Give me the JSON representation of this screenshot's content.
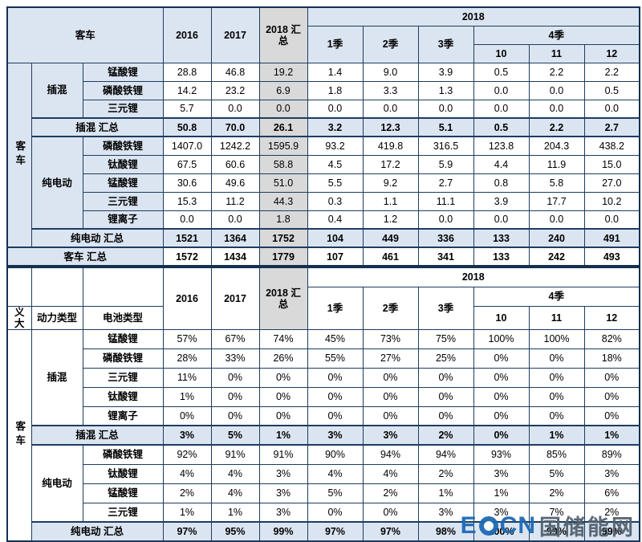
{
  "colors": {
    "header_blue": "#dbe5f1",
    "shade_gray": "#d9d9d9",
    "border": "#1d3c61",
    "watermark_blue": "#1e6ab4"
  },
  "watermark": {
    "left": "E",
    "right": "CN",
    "cn": "国储能网"
  },
  "chart_data": {
    "type": "table",
    "tables": [
      {
        "name": "bus-battery-volume-table",
        "side": "客车",
        "shade_col": 2,
        "header": {
          "corner": "客车",
          "years": [
            "2016",
            "2017"
          ],
          "total": "2018 汇总",
          "year_group": "2018",
          "quarters": [
            "1季",
            "2季",
            "3季"
          ],
          "q4": "4季",
          "months": [
            "10",
            "11",
            "12"
          ]
        },
        "groups": [
          {
            "name": "插混",
            "rows": [
              {
                "label": "锰酸锂",
                "values": [
                  "28.8",
                  "46.8",
                  "19.2",
                  "1.4",
                  "9.0",
                  "3.9",
                  "0.5",
                  "2.2",
                  "2.2"
                ]
              },
              {
                "label": "磷酸铁锂",
                "values": [
                  "14.2",
                  "23.2",
                  "6.9",
                  "1.8",
                  "3.3",
                  "1.3",
                  "0.0",
                  "0.0",
                  "0.5"
                ]
              },
              {
                "label": "三元锂",
                "values": [
                  "5.7",
                  "0.0",
                  "0.0",
                  "0.0",
                  "0.0",
                  "0.0",
                  "0.0",
                  "0.0",
                  "0.0"
                ]
              }
            ],
            "subtotal": {
              "label": "插混 汇总",
              "values": [
                "50.8",
                "70.0",
                "26.1",
                "3.2",
                "12.3",
                "5.1",
                "0.5",
                "2.2",
                "2.7"
              ]
            }
          },
          {
            "name": "纯电动",
            "rows": [
              {
                "label": "磷酸铁锂",
                "values": [
                  "1407.0",
                  "1242.2",
                  "1595.9",
                  "93.2",
                  "419.8",
                  "316.5",
                  "123.8",
                  "204.3",
                  "438.2"
                ]
              },
              {
                "label": "钛酸锂",
                "values": [
                  "67.5",
                  "60.6",
                  "58.8",
                  "4.5",
                  "17.2",
                  "5.9",
                  "4.4",
                  "11.9",
                  "15.0"
                ]
              },
              {
                "label": "锰酸锂",
                "values": [
                  "30.6",
                  "49.6",
                  "51.0",
                  "5.5",
                  "9.2",
                  "2.7",
                  "0.8",
                  "5.8",
                  "27.0"
                ]
              },
              {
                "label": "三元锂",
                "values": [
                  "15.3",
                  "11.2",
                  "44.3",
                  "0.3",
                  "1.1",
                  "11.1",
                  "3.9",
                  "17.7",
                  "10.2"
                ]
              },
              {
                "label": "锂离子",
                "values": [
                  "0.0",
                  "0.0",
                  "1.8",
                  "0.4",
                  "1.2",
                  "0.0",
                  "0.0",
                  "0.0",
                  "0.0"
                ]
              }
            ],
            "subtotal": {
              "label": "纯电动 汇总",
              "values": [
                "1521",
                "1364",
                "1752",
                "104",
                "449",
                "336",
                "133",
                "240",
                "491"
              ]
            }
          }
        ],
        "grand_total": {
          "label": "客车 汇总",
          "values": [
            "1572",
            "1434",
            "1779",
            "107",
            "461",
            "341",
            "133",
            "242",
            "493"
          ]
        }
      },
      {
        "name": "bus-battery-share-table",
        "side": "客车",
        "shade_col": -1,
        "header": {
          "corner_labels": [
            "义大",
            "动力类型",
            "电池类型"
          ],
          "years": [
            "2016",
            "2017"
          ],
          "total": "2018 汇总",
          "year_group": "2018",
          "quarters": [
            "1季",
            "2季",
            "3季"
          ],
          "q4": "4季",
          "months": [
            "10",
            "11",
            "12"
          ]
        },
        "groups": [
          {
            "name": "插混",
            "rows": [
              {
                "label": "锰酸锂",
                "values": [
                  "57%",
                  "67%",
                  "74%",
                  "45%",
                  "73%",
                  "75%",
                  "100%",
                  "100%",
                  "82%"
                ]
              },
              {
                "label": "磷酸铁锂",
                "values": [
                  "28%",
                  "33%",
                  "26%",
                  "55%",
                  "27%",
                  "25%",
                  "0%",
                  "0%",
                  "18%"
                ]
              },
              {
                "label": "三元锂",
                "values": [
                  "11%",
                  "0%",
                  "0%",
                  "0%",
                  "0%",
                  "0%",
                  "0%",
                  "0%",
                  "0%"
                ]
              },
              {
                "label": "钛酸锂",
                "values": [
                  "1%",
                  "0%",
                  "0%",
                  "0%",
                  "0%",
                  "0%",
                  "0%",
                  "0%",
                  "0%"
                ]
              },
              {
                "label": "锂离子",
                "values": [
                  "0%",
                  "0%",
                  "0%",
                  "0%",
                  "0%",
                  "0%",
                  "0%",
                  "0%",
                  "0%"
                ]
              }
            ],
            "subtotal": {
              "label": "插混 汇总",
              "values": [
                "3%",
                "5%",
                "1%",
                "3%",
                "3%",
                "2%",
                "0%",
                "1%",
                "1%"
              ]
            }
          },
          {
            "name": "纯电动",
            "rows": [
              {
                "label": "磷酸铁锂",
                "values": [
                  "92%",
                  "91%",
                  "91%",
                  "90%",
                  "94%",
                  "94%",
                  "93%",
                  "85%",
                  "89%"
                ]
              },
              {
                "label": "钛酸锂",
                "values": [
                  "4%",
                  "4%",
                  "3%",
                  "4%",
                  "4%",
                  "2%",
                  "3%",
                  "5%",
                  "3%"
                ]
              },
              {
                "label": "锰酸锂",
                "values": [
                  "2%",
                  "4%",
                  "3%",
                  "5%",
                  "2%",
                  "1%",
                  "1%",
                  "2%",
                  "6%"
                ]
              },
              {
                "label": "三元锂",
                "values": [
                  "1%",
                  "1%",
                  "3%",
                  "0%",
                  "0%",
                  "3%",
                  "3%",
                  "7%",
                  "2%"
                ]
              }
            ],
            "subtotal": {
              "label": "纯电动 汇总",
              "values": [
                "97%",
                "95%",
                "99%",
                "97%",
                "97%",
                "98%",
                "100%",
                "99%",
                "99%"
              ]
            }
          }
        ]
      }
    ]
  }
}
